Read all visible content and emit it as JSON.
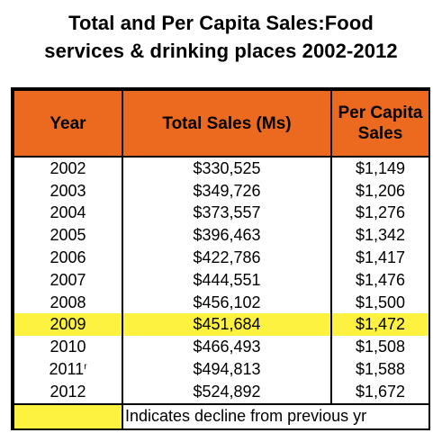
{
  "title": {
    "line1": "Total and Per Capita Sales:Food",
    "line2": "services & drinking places 2002-2012"
  },
  "table": {
    "headers": {
      "year": "Year",
      "total": "Total Sales (Ms)",
      "per_capita_line1": "Per Capita",
      "per_capita_line2": "Sales"
    },
    "rows": [
      {
        "year": "2002",
        "mark": "",
        "total": "$330,525",
        "per_capita": "$1,149",
        "highlight": false
      },
      {
        "year": "2003",
        "mark": "",
        "total": "$349,726",
        "per_capita": "$1,206",
        "highlight": false
      },
      {
        "year": "2004",
        "mark": "",
        "total": "$373,557",
        "per_capita": "$1,276",
        "highlight": false
      },
      {
        "year": "2005",
        "mark": "",
        "total": "$396,463",
        "per_capita": "$1,342",
        "highlight": false
      },
      {
        "year": "2006",
        "mark": "",
        "total": "$422,786",
        "per_capita": "$1,417",
        "highlight": false
      },
      {
        "year": "2007",
        "mark": "",
        "total": "$444,551",
        "per_capita": "$1,476",
        "highlight": false
      },
      {
        "year": "2008",
        "mark": "",
        "total": "$456,102",
        "per_capita": "$1,500",
        "highlight": false
      },
      {
        "year": "2009",
        "mark": "",
        "total": "$451,684",
        "per_capita": "$1,472",
        "highlight": true
      },
      {
        "year": "2010",
        "mark": "",
        "total": "$466,493",
        "per_capita": "$1,508",
        "highlight": false
      },
      {
        "year": "2011",
        "mark": "r",
        "total": "$494,813",
        "per_capita": "$1,588",
        "highlight": false
      },
      {
        "year": "2012",
        "mark": "",
        "total": "$524,892",
        "per_capita": "$1,672",
        "highlight": false
      }
    ],
    "legend": "Indicates decline from previous yr"
  },
  "colors": {
    "header_bg": "#ec6a1f",
    "highlight": "#fdf240"
  }
}
